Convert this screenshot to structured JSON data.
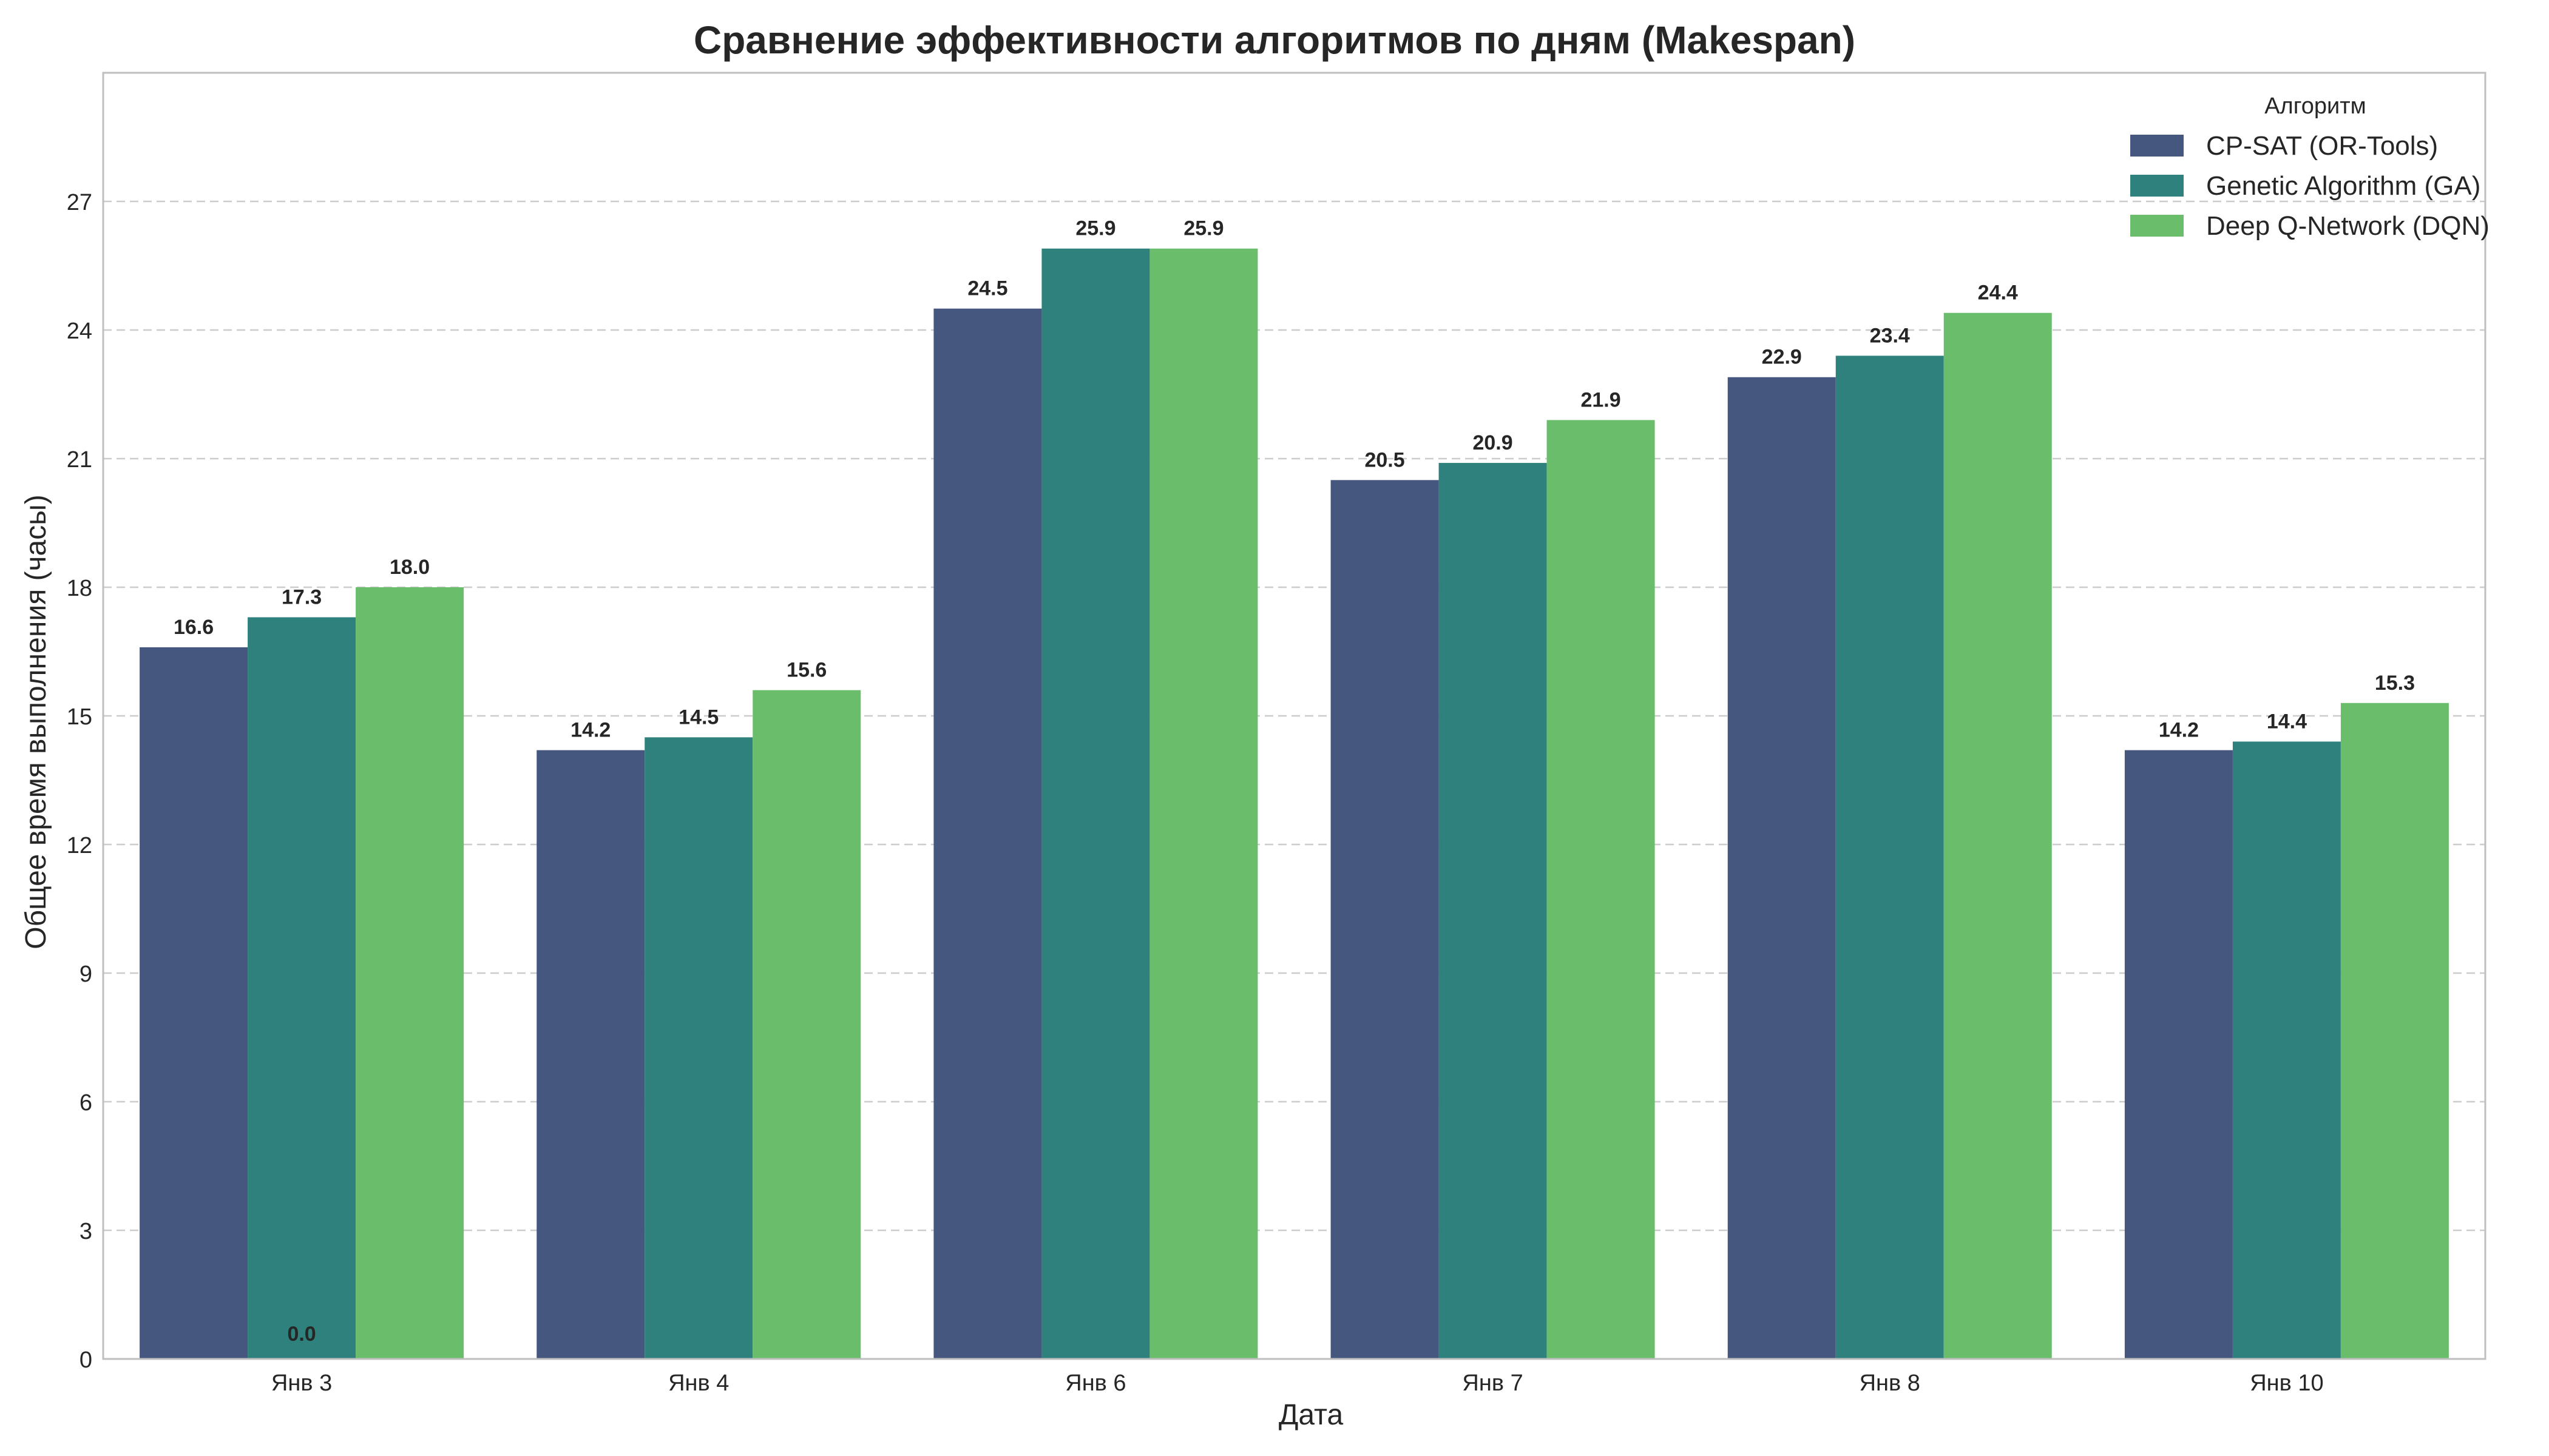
{
  "chart_data": {
    "type": "bar",
    "title": "Сравнение эффективности алгоритмов по дням (Makespan)",
    "xlabel": "Дата",
    "ylabel": "Общее время выполнения (часы)",
    "ylim": [
      0,
      30
    ],
    "yticks": [
      0,
      3,
      6,
      9,
      12,
      15,
      18,
      21,
      24,
      27
    ],
    "grid": "y-dashed",
    "categories": [
      "Янв 3",
      "Янв 4",
      "Янв 6",
      "Янв 7",
      "Янв 8",
      "Янв 10"
    ],
    "legend": {
      "title": "Алгоритм",
      "placement": "top-right"
    },
    "series": [
      {
        "name": "CP-SAT (OR-Tools)",
        "color": "#46577f",
        "values": [
          16.6,
          14.2,
          24.5,
          20.5,
          22.9,
          14.2
        ],
        "labels": [
          "16.6",
          "14.2",
          "24.5",
          "20.5",
          "22.9",
          "14.2"
        ]
      },
      {
        "name": "Genetic Algorithm (GA)",
        "color": "#2e817c",
        "values": [
          17.3,
          14.5,
          25.9,
          20.9,
          23.4,
          14.4
        ],
        "labels": [
          "17.3",
          "14.5",
          "25.9",
          "20.9",
          "23.4",
          "14.4"
        ]
      },
      {
        "name": "Deep Q-Network (DQN)",
        "color": "#6abd6b",
        "values": [
          18.0,
          15.6,
          25.9,
          21.9,
          24.4,
          15.3
        ],
        "labels": [
          "18.0",
          "15.6",
          "25.9",
          "21.9",
          "24.4",
          "15.3"
        ]
      }
    ],
    "annotations": [
      {
        "text": "0.0",
        "category": "Янв 3",
        "series_index": 1,
        "value": 0
      }
    ]
  }
}
